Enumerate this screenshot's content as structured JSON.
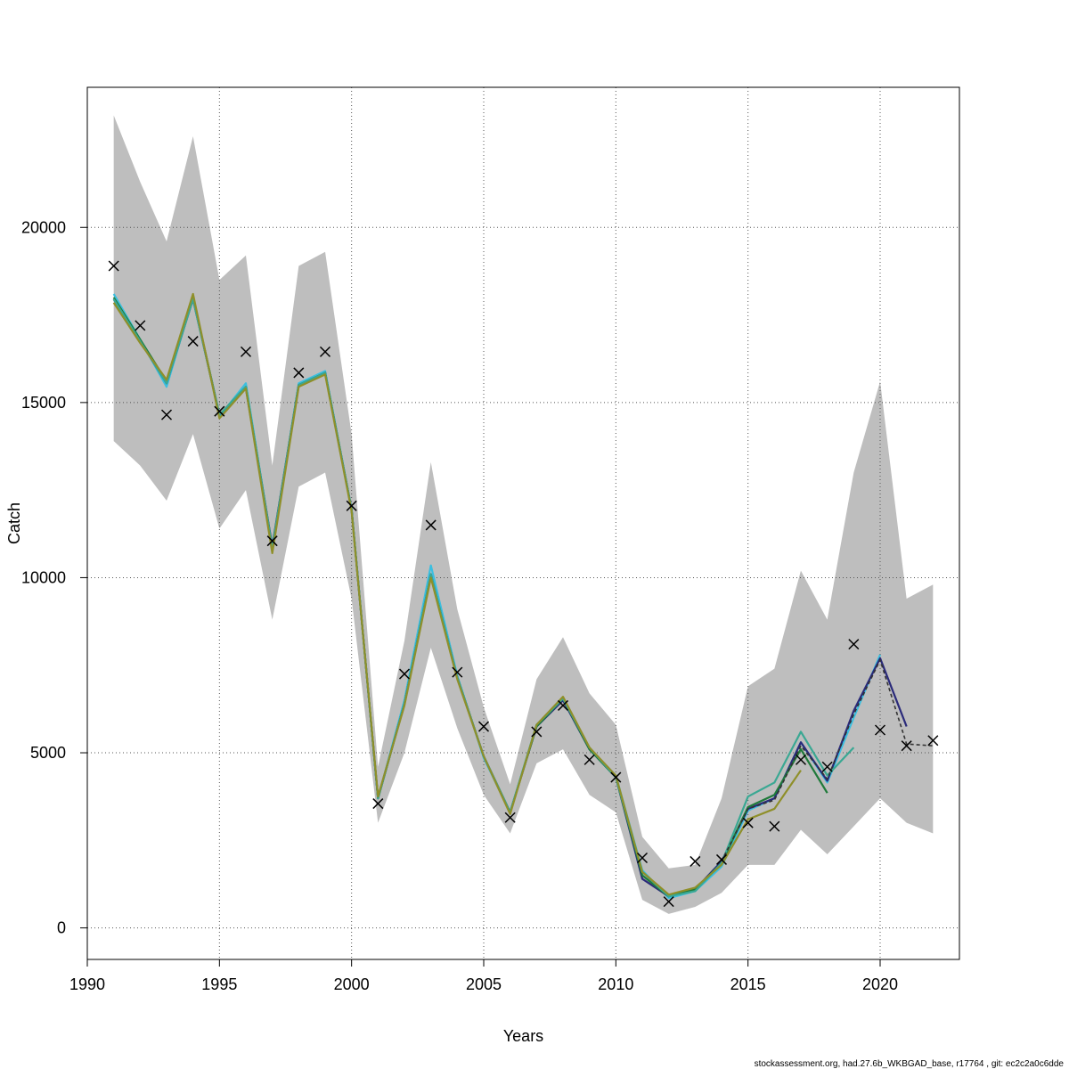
{
  "chart_data": {
    "type": "line",
    "title": "",
    "xlabel": "Years",
    "ylabel": "Catch",
    "xlim": [
      1990,
      2023
    ],
    "ylim": [
      -900,
      24000
    ],
    "xticks": [
      1990,
      1995,
      2000,
      2005,
      2010,
      2015,
      2020
    ],
    "yticks": [
      0,
      5000,
      10000,
      15000,
      20000
    ],
    "xtick_labels": [
      "1990",
      "1995",
      "2000",
      "2005",
      "2010",
      "2015",
      "2020"
    ],
    "ytick_labels": [
      "0",
      "5000",
      "10000",
      "15000",
      "20000"
    ],
    "grid": true,
    "footer": "stockassessment.org, had.27.6b_WKBGAD_base, r17764 , git: ec2c2a0c6dde",
    "band": {
      "color": "#bebebe",
      "x": [
        1991,
        1992,
        1993,
        1994,
        1995,
        1996,
        1997,
        1998,
        1999,
        2000,
        2001,
        2002,
        2003,
        2004,
        2005,
        2006,
        2007,
        2008,
        2009,
        2010,
        2011,
        2012,
        2013,
        2014,
        2015,
        2016,
        2017,
        2018,
        2019,
        2020,
        2021,
        2022
      ],
      "upper": [
        23200,
        21300,
        19600,
        22600,
        18500,
        19200,
        13200,
        18900,
        19300,
        14100,
        4600,
        8200,
        13300,
        9100,
        6300,
        4100,
        7100,
        8300,
        6700,
        5800,
        2600,
        1700,
        1800,
        3700,
        6900,
        7400,
        10200,
        8800,
        13000,
        15600,
        9400,
        9800
      ],
      "lower": [
        13900,
        13200,
        12200,
        14100,
        11400,
        12500,
        8800,
        12600,
        13000,
        9400,
        3000,
        5000,
        8000,
        5700,
        3800,
        2700,
        4700,
        5100,
        3800,
        3300,
        800,
        400,
        600,
        1000,
        1800,
        1800,
        2800,
        2100,
        2900,
        3700,
        3000,
        2700
      ]
    },
    "observations": {
      "marker": "x",
      "color": "#000000",
      "x": [
        1991,
        1992,
        1993,
        1994,
        1995,
        1996,
        1997,
        1998,
        1999,
        2000,
        2001,
        2002,
        2003,
        2004,
        2005,
        2006,
        2007,
        2008,
        2009,
        2010,
        2011,
        2012,
        2013,
        2014,
        2015,
        2016,
        2017,
        2018,
        2019,
        2020,
        2021,
        2022
      ],
      "y": [
        18900,
        17200,
        14650,
        16750,
        14750,
        16450,
        11050,
        15850,
        16450,
        12050,
        3550,
        7250,
        11500,
        7300,
        5750,
        3150,
        5600,
        6350,
        4800,
        4300,
        2000,
        750,
        1900,
        1950,
        3000,
        2900,
        4800,
        4600,
        8100,
        5650,
        5200,
        5350
      ]
    },
    "series": [
      {
        "color": "#3bbfe0",
        "x": [
          1991,
          1992,
          1993,
          1994,
          1995,
          1996,
          1997,
          1998,
          1999,
          2000,
          2001,
          2002,
          2003,
          2004,
          2005,
          2006,
          2007,
          2008,
          2009,
          2010,
          2011,
          2012,
          2013,
          2014,
          2015,
          2016,
          2017,
          2018,
          2019,
          2020
        ],
        "y": [
          18100,
          16800,
          15450,
          18000,
          14600,
          15550,
          10850,
          15550,
          15900,
          11950,
          3700,
          6500,
          10350,
          7200,
          4850,
          3300,
          5800,
          6550,
          5100,
          4350,
          1650,
          850,
          1050,
          1750,
          3350,
          3700,
          5300,
          4150,
          6000,
          7800
        ]
      },
      {
        "color": "#2a2a7a",
        "x": [
          1991,
          1992,
          1993,
          1994,
          1995,
          1996,
          1997,
          1998,
          1999,
          2000,
          2001,
          2002,
          2003,
          2004,
          2005,
          2006,
          2007,
          2008,
          2009,
          2010,
          2011,
          2012,
          2013,
          2014,
          2015,
          2016,
          2017,
          2018,
          2019,
          2020,
          2021
        ],
        "y": [
          17950,
          16750,
          15550,
          17950,
          14650,
          15400,
          10900,
          15500,
          15850,
          11950,
          3700,
          6400,
          10100,
          7150,
          4900,
          3300,
          5750,
          6500,
          5100,
          4300,
          1400,
          900,
          1100,
          1900,
          3400,
          3700,
          5300,
          4200,
          6200,
          7700,
          5750
        ]
      },
      {
        "color": "#1f7a3a",
        "x": [
          1991,
          1992,
          1993,
          1994,
          1995,
          1996,
          1997,
          1998,
          1999,
          2000,
          2001,
          2002,
          2003,
          2004,
          2005,
          2006,
          2007,
          2008,
          2009,
          2010,
          2011,
          2012,
          2013,
          2014,
          2015,
          2016,
          2017,
          2018
        ],
        "y": [
          18000,
          16800,
          15600,
          18000,
          14650,
          15450,
          10850,
          15500,
          15850,
          11950,
          3700,
          6400,
          10050,
          7150,
          4900,
          3300,
          5750,
          6550,
          5100,
          4300,
          1500,
          900,
          1100,
          1850,
          3450,
          3800,
          5100,
          3850
        ]
      },
      {
        "color": "#3aa893",
        "x": [
          1991,
          1992,
          1993,
          1994,
          1995,
          1996,
          1997,
          1998,
          1999,
          2000,
          2001,
          2002,
          2003,
          2004,
          2005,
          2006,
          2007,
          2008,
          2009,
          2010,
          2011,
          2012,
          2013,
          2014,
          2015,
          2016,
          2017,
          2018,
          2019
        ],
        "y": [
          17950,
          16750,
          15550,
          17950,
          14650,
          15450,
          10850,
          15500,
          15850,
          11950,
          3700,
          6400,
          10100,
          7150,
          4900,
          3300,
          5800,
          6550,
          5150,
          4300,
          1600,
          900,
          1050,
          1850,
          3750,
          4150,
          5600,
          4350,
          5150
        ]
      },
      {
        "color": "#8f8f2a",
        "x": [
          1991,
          1992,
          1993,
          1994,
          1995,
          1996,
          1997,
          1998,
          1999,
          2000,
          2001,
          2002,
          2003,
          2004,
          2005,
          2006,
          2007,
          2008,
          2009,
          2010,
          2011,
          2012,
          2013,
          2014,
          2015,
          2016,
          2017
        ],
        "y": [
          17850,
          16700,
          15650,
          18100,
          14550,
          15400,
          10700,
          15450,
          15800,
          11900,
          3750,
          6350,
          10000,
          7100,
          4900,
          3250,
          5800,
          6600,
          5150,
          4350,
          1600,
          950,
          1150,
          1800,
          3100,
          3400,
          4500
        ]
      },
      {
        "color": "#333333",
        "dashed": true,
        "x": [
          2014,
          2015,
          2016,
          2017,
          2018,
          2019,
          2020,
          2021,
          2022
        ],
        "y": [
          1900,
          3400,
          3650,
          5200,
          4250,
          6100,
          7650,
          5250,
          5200
        ]
      }
    ]
  }
}
